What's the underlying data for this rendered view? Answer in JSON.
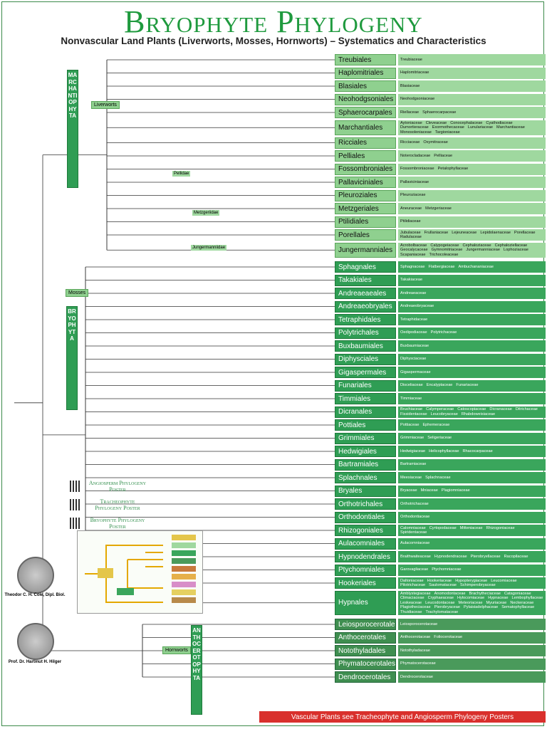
{
  "header": {
    "title": "Bryophyte Phylogeny",
    "subtitle": "Nonvascular Land Plants (Liverworts, Mosses, Hornworts) – Systematics and Characteristics"
  },
  "groups": [
    {
      "division": "MARCHANTIOPHYTA",
      "common": "Liverworts",
      "orders": [
        {
          "name": "Treubiales",
          "families": [
            "Treubiaceae"
          ]
        },
        {
          "name": "Haplomitriales",
          "families": [
            "Haplomitriaceae"
          ]
        },
        {
          "name": "Blasiales",
          "families": [
            "Blasiaceae"
          ]
        },
        {
          "name": "Neohodgsoniales",
          "families": [
            "Neohodgsoniaceae"
          ]
        },
        {
          "name": "Sphaerocarpales",
          "families": [
            "Riellaceae",
            "Sphaerocarpaceae"
          ]
        },
        {
          "name": "Marchantiales",
          "families": [
            "Aytoniaceae",
            "Cleveaceae",
            "Conocephalaceae",
            "Cyathodiaceae",
            "Dumortieraceae",
            "Exormothecaceae",
            "Lunulariaceae",
            "Marchantiaceae",
            "Monosoleniaceae",
            "Targioniaceae"
          ]
        },
        {
          "name": "Ricciales",
          "families": [
            "Ricciaceae",
            "Oxymitraceae"
          ]
        },
        {
          "name": "Pelliales",
          "families": [
            "Noterocladaceae",
            "Pelliaceae"
          ]
        },
        {
          "name": "Fossombroniales",
          "families": [
            "Fossombroniaceae",
            "Petalophyllaceae"
          ]
        },
        {
          "name": "Pallaviciniales",
          "families": [
            "Pallaviciniaceae"
          ]
        },
        {
          "name": "Pleuroziales",
          "families": [
            "Pleuroziaceae"
          ]
        },
        {
          "name": "Metzgeriales",
          "families": [
            "Aneuraceae",
            "Metzgeriaceae"
          ]
        },
        {
          "name": "Ptilidiales",
          "families": [
            "Ptilidiaceae"
          ]
        },
        {
          "name": "Porellales",
          "families": [
            "Jubulaceae",
            "Frullaniaceae",
            "Lejeuneaceae",
            "Lepidolaenaceae",
            "Porellaceae",
            "Radulaceae"
          ]
        },
        {
          "name": "Jungermanniales",
          "families": [
            "Acrobolbaceae",
            "Calypogeiaceae",
            "Cephaloziaceae",
            "Cephaloziellaceae",
            "Geocalycaceae",
            "Gymnomitriaceae",
            "Jungermanniaceae",
            "Lophoziaceae",
            "Scapaniaceae",
            "Trichocoleaceae"
          ]
        }
      ]
    },
    {
      "division": "BRYOPHYTA",
      "common": "Mosses",
      "orders": [
        {
          "name": "Sphagnales",
          "families": [
            "Sphagnaceae",
            "Flatbergiaceae",
            "Ambuchananiaceae"
          ]
        },
        {
          "name": "Takakiales",
          "families": [
            "Takakiaceae"
          ]
        },
        {
          "name": "Andreaeaeales",
          "families": [
            "Andreaeaceae"
          ]
        },
        {
          "name": "Andreaeobryales",
          "families": [
            "Andreaeobryaceae"
          ]
        },
        {
          "name": "Tetraphidales",
          "families": [
            "Tetraphidaceae"
          ]
        },
        {
          "name": "Polytrichales",
          "families": [
            "Oedipodiaceae",
            "Polytrichaceae"
          ]
        },
        {
          "name": "Buxbaumiales",
          "families": [
            "Buxbaumiaceae"
          ]
        },
        {
          "name": "Diphysciales",
          "families": [
            "Diphysciaceae"
          ]
        },
        {
          "name": "Gigaspermales",
          "families": [
            "Gigaspermaceae"
          ]
        },
        {
          "name": "Funariales",
          "families": [
            "Disceliaceae",
            "Encalyptaceae",
            "Funariaceae"
          ]
        },
        {
          "name": "Timmiales",
          "families": [
            "Timmiaceae"
          ]
        },
        {
          "name": "Dicranales",
          "families": [
            "Bruchiaceae",
            "Calymperaceae",
            "Catoscopiaceae",
            "Dicranaceae",
            "Ditrichaceae",
            "Fissidentaceae",
            "Leucobryaceae",
            "Rhabdoweisiaceae"
          ]
        },
        {
          "name": "Pottiales",
          "families": [
            "Pottiaceae",
            "Ephemeraceae"
          ]
        },
        {
          "name": "Grimmiales",
          "families": [
            "Grimmiaceae",
            "Seligeriaceae"
          ]
        },
        {
          "name": "Hedwigiales",
          "families": [
            "Hedwigiaceae",
            "Helicophyllaceae",
            "Rhacocarpaceae"
          ]
        },
        {
          "name": "Bartramiales",
          "families": [
            "Bartramiaceae"
          ]
        },
        {
          "name": "Splachnales",
          "families": [
            "Meesiaceae",
            "Splachnaceae"
          ]
        },
        {
          "name": "Bryales",
          "families": [
            "Bryaceae",
            "Mniaceae",
            "Plagiomniaceae"
          ]
        },
        {
          "name": "Orthotrichales",
          "families": [
            "Orthotrichaceae"
          ]
        },
        {
          "name": "Orthodontiales",
          "families": [
            "Orthodontiaceae"
          ]
        },
        {
          "name": "Rhizogoniales",
          "families": [
            "Calomniaceae",
            "Cyrtopodaceae",
            "Mitteniaceae",
            "Rhizogoniaceae",
            "Spiridentaceae"
          ]
        },
        {
          "name": "Aulacomniales",
          "families": [
            "Aulacomniaceae"
          ]
        },
        {
          "name": "Hypnodendrales",
          "families": [
            "Braithwaiteaceae",
            "Hypnodendraceae",
            "Pterobryellaceae",
            "Racopilaceae"
          ]
        },
        {
          "name": "Ptychomniales",
          "families": [
            "Garovagliaceae",
            "Ptychomniaceae"
          ]
        },
        {
          "name": "Hookeriales",
          "families": [
            "Daltoniaceae",
            "Hookeriaceae",
            "Hypopterygiaceae",
            "Leucomiaceae",
            "Pilotrichaceae",
            "Saulomataceae",
            "Schimperobryaceae"
          ]
        },
        {
          "name": "Hypnales",
          "families": [
            "Amblystegiaceae",
            "Anomodontaceae",
            "Brachytheciaceae",
            "Catagoniaceae",
            "Climaciaceae",
            "Cryphaeaceae",
            "Hylocomiaceae",
            "Hypnaceae",
            "Lembophyllaceae",
            "Leskeaceae",
            "Leucodontaceae",
            "Meteoriaceae",
            "Myuriaceae",
            "Neckeraceae",
            "Plagiotheciaceae",
            "Pterobryaceae",
            "Pylaisiadelphaceae",
            "Sematophyllaceae",
            "Thuidiaceae",
            "Trachylomataceae"
          ]
        }
      ]
    },
    {
      "division": "ANTHOCEROTOPHYTA",
      "common": "Hornworts",
      "orders": [
        {
          "name": "Leiosporocerotales",
          "families": [
            "Leiosporocerotaceae"
          ]
        },
        {
          "name": "Anthocerotales",
          "families": [
            "Anthocerotaceae",
            "Foliocerotaceae"
          ]
        },
        {
          "name": "Notothyladales",
          "families": [
            "Notothyladaceae"
          ]
        },
        {
          "name": "Phymatocerotales",
          "families": [
            "Phymatocerotaceae"
          ]
        },
        {
          "name": "Dendrocerotales",
          "families": [
            "Dendrocerotaceae"
          ]
        }
      ]
    }
  ],
  "subgroups": [
    "Pellidae",
    "Metzgeriidae",
    "Jungermanniidae"
  ],
  "posters": [
    "Angiosperm Phylogeny Poster",
    "Tracheophyte Phylogeny Poster",
    "Bryophyte Phylogeny Poster"
  ],
  "authors": [
    "Theodor C. H. Cole, Dipl. Biol.",
    "Prof. Dr. Hartmut H. Hilger"
  ],
  "footer": "Vascular Plants see Tracheophyte and Angiosperm Phylogeny Posters"
}
